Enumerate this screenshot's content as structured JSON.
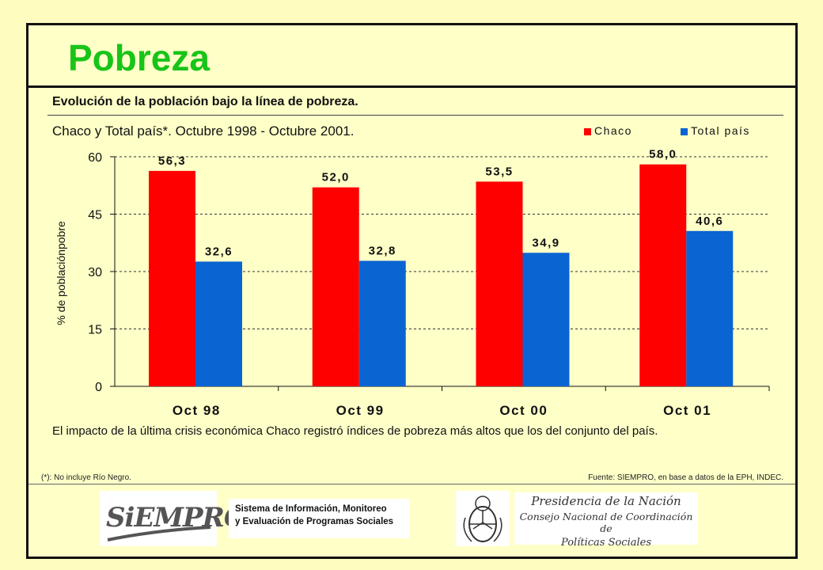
{
  "slide": {
    "title": "Pobreza",
    "subtitle": "Evolución de la población bajo la línea de pobreza.",
    "chart_caption": "Chaco  y Total país*. Octubre 1998 - Octubre 2001.",
    "note": "El impacto de la última crisis económica Chaco registró  índices de pobreza más altos que los del conjunto del país.",
    "footnote": "(*): No incluye Río Negro.",
    "source": "Fuente: SIEMPRO,  en base a datos de la EPH, INDEC."
  },
  "logos": {
    "siempro": "SiEMPRO",
    "sistema_line1": "Sistema de Información, Monitoreo",
    "sistema_line2": "y Evaluación de Programas Sociales",
    "presidencia_line1": "Presidencia de la Nación",
    "presidencia_line2": "Consejo Nacional de Coordinación de",
    "presidencia_line3": "Políticas Sociales"
  },
  "chart_data": {
    "type": "bar",
    "categories": [
      "Oct 98",
      "Oct 99",
      "Oct 00",
      "Oct 01"
    ],
    "series": [
      {
        "name": "Chaco",
        "values": [
          56.3,
          52.0,
          53.5,
          58.0
        ],
        "color": "#ff0000"
      },
      {
        "name": "Total país",
        "values": [
          32.6,
          32.8,
          34.9,
          40.6
        ],
        "color": "#0a64d2"
      }
    ],
    "value_labels": [
      [
        "56,3",
        "52,0",
        "53,5",
        "58,0"
      ],
      [
        "32,6",
        "32,8",
        "34,9",
        "40,6"
      ]
    ],
    "ylabel": "% de poblaciónpobre",
    "yticks": [
      0,
      15,
      30,
      45,
      60
    ],
    "ylim": [
      0,
      60
    ],
    "grid": true,
    "legend_position": "top-right"
  }
}
